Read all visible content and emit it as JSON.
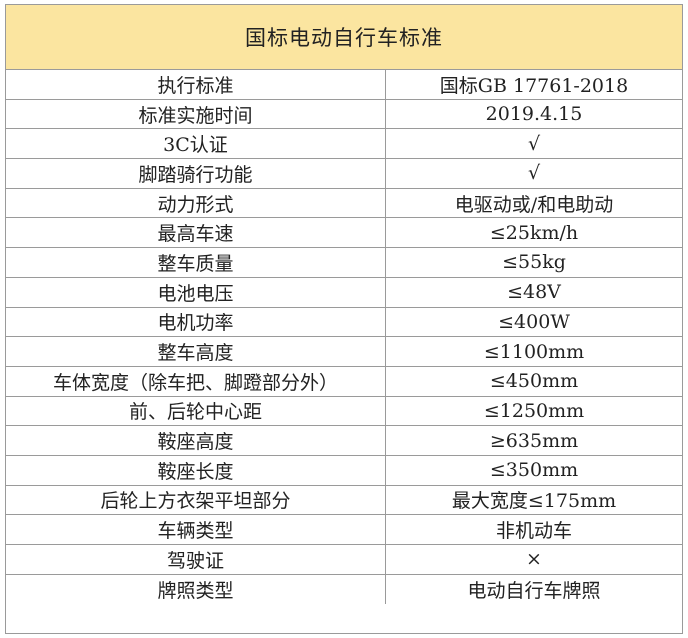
{
  "title": "国标电动自行车标准",
  "rows": [
    {
      "label": "执行标准",
      "value": "国标GB 17761-2018"
    },
    {
      "label": "标准实施时间",
      "value": "2019.4.15"
    },
    {
      "label": "3C认证",
      "value": "√"
    },
    {
      "label": "脚踏骑行功能",
      "value": "√"
    },
    {
      "label": "动力形式",
      "value": "电驱动或/和电助动"
    },
    {
      "label": "最高车速",
      "value": "≤25km/h"
    },
    {
      "label": "整车质量",
      "value": "≤55kg"
    },
    {
      "label": "电池电压",
      "value": "≤48V"
    },
    {
      "label": "电机功率",
      "value": "≤400W"
    },
    {
      "label": "整车高度",
      "value": "≤1100mm"
    },
    {
      "label": "车体宽度（除车把、脚蹬部分外）",
      "value": "≤450mm"
    },
    {
      "label": "前、后轮中心距",
      "value": "≤1250mm"
    },
    {
      "label": "鞍座高度",
      "value": "≥635mm"
    },
    {
      "label": "鞍座长度",
      "value": "≤350mm"
    },
    {
      "label": "后轮上方衣架平坦部分",
      "value": "最大宽度≤175mm"
    },
    {
      "label": "车辆类型",
      "value": "非机动车"
    },
    {
      "label": "驾驶证",
      "value": "×"
    },
    {
      "label": "牌照类型",
      "value": "电动自行车牌照"
    }
  ]
}
